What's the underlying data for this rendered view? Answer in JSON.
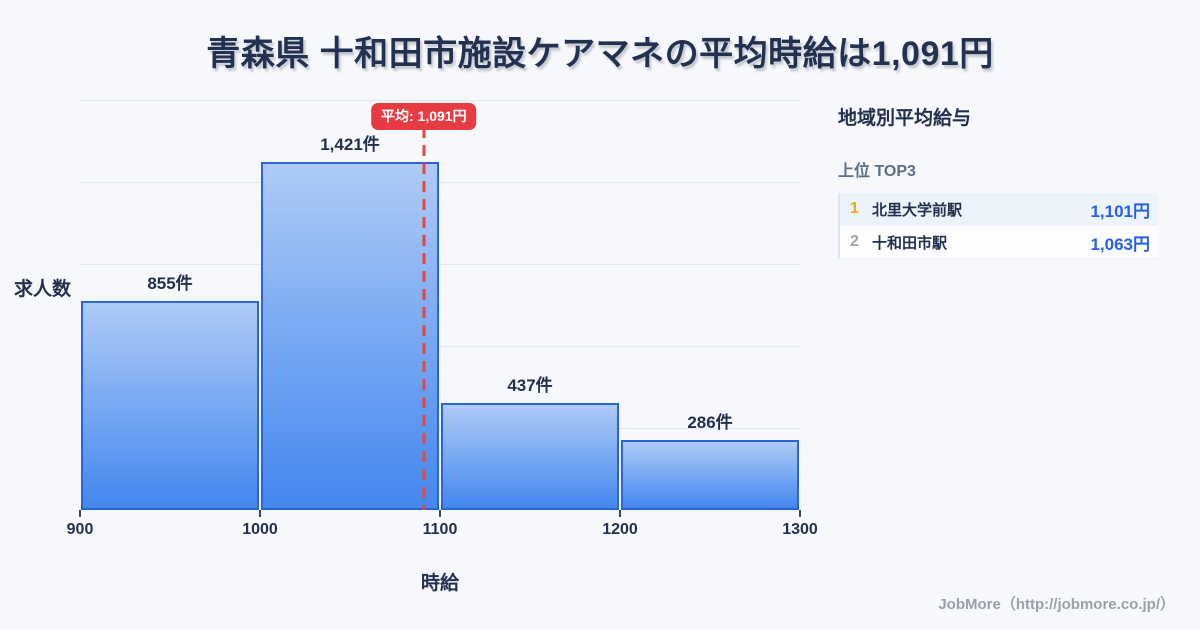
{
  "title": "青森県 十和田市施設ケアマネの平均時給は1,091円",
  "chart_data": {
    "type": "bar",
    "subtype": "histogram",
    "title": "",
    "xlabel": "時給",
    "ylabel": "求人数",
    "categories": [
      "900-1000",
      "1000-1100",
      "1100-1200",
      "1200-1300"
    ],
    "bin_edges": [
      900,
      1000,
      1100,
      1200,
      1300
    ],
    "values": [
      855,
      1421,
      437,
      286
    ],
    "value_labels": [
      "855件",
      "1,421件",
      "437件",
      "286件"
    ],
    "x_ticks": [
      "900",
      "1000",
      "1100",
      "1200",
      "1300"
    ],
    "xlim": [
      900,
      1300
    ],
    "ylim": [
      0,
      1675
    ],
    "grid": true,
    "legend": false,
    "average": {
      "value": 1091,
      "label": "平均: 1,091円"
    }
  },
  "sidebar": {
    "heading": "地域別平均給与",
    "subheading": "上位 TOP3",
    "ranking": [
      {
        "rank": "1",
        "name": "北里大学前駅",
        "value": "1,101円"
      },
      {
        "rank": "2",
        "name": "十和田市駅",
        "value": "1,063円"
      }
    ]
  },
  "footer": {
    "credit": "JobMore（http://jobmore.co.jp/）"
  },
  "colors": {
    "background": "#f7f8fb",
    "title_text": "#233150",
    "bar_fill_top": "#aecbf6",
    "bar_fill_bottom": "#4387ef",
    "bar_border": "#2a64d9",
    "average_red": "#e73b43",
    "gridline": "#e4e7ee",
    "rank1_accent": "#f2a71b",
    "rank2_accent": "#9ba4b0",
    "value_blue": "#2760e8",
    "footer_gray": "#9b9fa8"
  }
}
